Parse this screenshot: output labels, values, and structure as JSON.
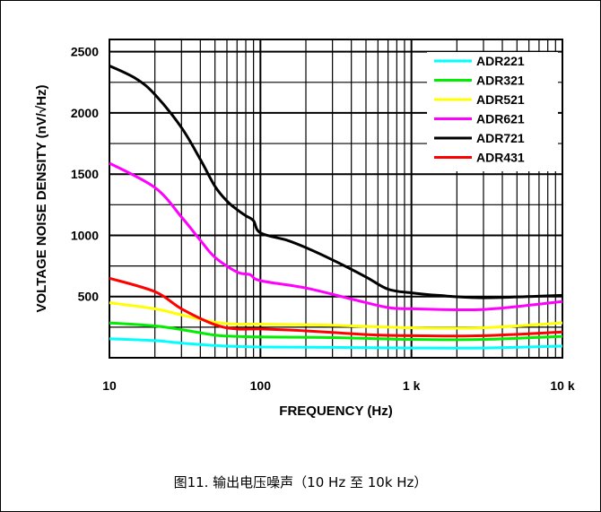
{
  "caption": "图11. 输出电压噪声（10 Hz 至 10k Hz）",
  "chart_data": {
    "type": "line",
    "xlabel": "FREQUENCY (Hz)",
    "ylabel": "VOLTAGE NOISE DENSITY (nV/√Hz)",
    "xscale": "log",
    "xlim": [
      10,
      10000
    ],
    "ylim": [
      0,
      2600
    ],
    "grid": true,
    "legend_position": "top-right",
    "xticks": [
      {
        "value": 10,
        "label": "10"
      },
      {
        "value": 100,
        "label": "100"
      },
      {
        "value": 1000,
        "label": "1 k"
      },
      {
        "value": 10000,
        "label": "10 k"
      }
    ],
    "yticks": [
      {
        "value": 500,
        "label": "500"
      },
      {
        "value": 1000,
        "label": "1000"
      },
      {
        "value": 1500,
        "label": "1500"
      },
      {
        "value": 2000,
        "label": "2000"
      },
      {
        "value": 2500,
        "label": "2500"
      }
    ],
    "series": [
      {
        "name": "ADR221",
        "color": "#00FFFF",
        "points": [
          [
            10,
            155
          ],
          [
            20,
            140
          ],
          [
            30,
            120
          ],
          [
            50,
            100
          ],
          [
            70,
            92
          ],
          [
            100,
            88
          ],
          [
            300,
            85
          ],
          [
            1000,
            80
          ],
          [
            3000,
            80
          ],
          [
            10000,
            95
          ]
        ]
      },
      {
        "name": "ADR321",
        "color": "#00EE00",
        "points": [
          [
            10,
            285
          ],
          [
            20,
            260
          ],
          [
            30,
            230
          ],
          [
            50,
            185
          ],
          [
            70,
            175
          ],
          [
            100,
            170
          ],
          [
            300,
            165
          ],
          [
            1000,
            150
          ],
          [
            3000,
            150
          ],
          [
            10000,
            175
          ]
        ]
      },
      {
        "name": "ADR521",
        "color": "#FFFF00",
        "points": [
          [
            10,
            450
          ],
          [
            20,
            400
          ],
          [
            30,
            350
          ],
          [
            50,
            290
          ],
          [
            70,
            275
          ],
          [
            100,
            275
          ],
          [
            300,
            265
          ],
          [
            1000,
            245
          ],
          [
            3000,
            245
          ],
          [
            10000,
            285
          ]
        ]
      },
      {
        "name": "ADR621",
        "color": "#FF00FF",
        "points": [
          [
            10,
            1590
          ],
          [
            20,
            1390
          ],
          [
            30,
            1150
          ],
          [
            40,
            960
          ],
          [
            50,
            820
          ],
          [
            70,
            700
          ],
          [
            85,
            680
          ],
          [
            100,
            630
          ],
          [
            200,
            570
          ],
          [
            400,
            480
          ],
          [
            700,
            410
          ],
          [
            1000,
            400
          ],
          [
            3000,
            395
          ],
          [
            10000,
            460
          ]
        ]
      },
      {
        "name": "ADR721",
        "color": "#000000",
        "points": [
          [
            10,
            2385
          ],
          [
            15,
            2280
          ],
          [
            20,
            2150
          ],
          [
            30,
            1880
          ],
          [
            40,
            1620
          ],
          [
            50,
            1400
          ],
          [
            60,
            1280
          ],
          [
            70,
            1210
          ],
          [
            80,
            1160
          ],
          [
            90,
            1120
          ],
          [
            100,
            1020
          ],
          [
            150,
            960
          ],
          [
            200,
            900
          ],
          [
            300,
            800
          ],
          [
            500,
            660
          ],
          [
            700,
            560
          ],
          [
            1000,
            530
          ],
          [
            1500,
            510
          ],
          [
            3000,
            490
          ],
          [
            10000,
            510
          ]
        ]
      },
      {
        "name": "ADR431",
        "color": "#FF0000",
        "points": [
          [
            10,
            650
          ],
          [
            20,
            540
          ],
          [
            30,
            400
          ],
          [
            50,
            270
          ],
          [
            70,
            235
          ],
          [
            100,
            235
          ],
          [
            200,
            220
          ],
          [
            500,
            190
          ],
          [
            1000,
            180
          ],
          [
            3000,
            180
          ],
          [
            10000,
            210
          ]
        ]
      }
    ]
  }
}
